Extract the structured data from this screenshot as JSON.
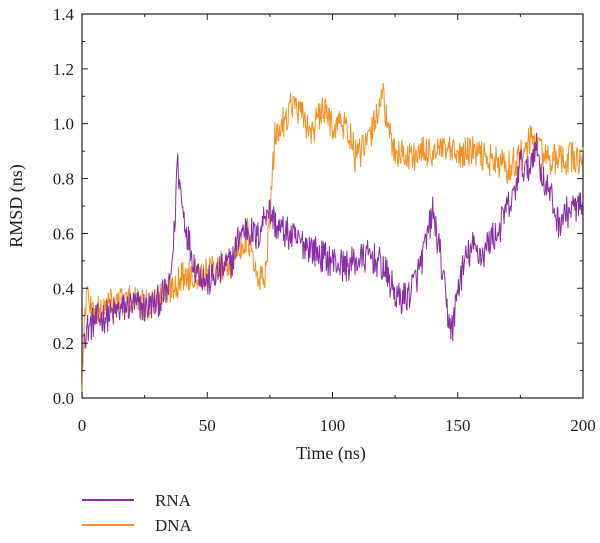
{
  "chart_data": {
    "type": "line",
    "title": "",
    "xlabel": "Time (ns)",
    "ylabel": "RMSD (ns)",
    "xlim": [
      0,
      200
    ],
    "ylim": [
      0.0,
      1.4
    ],
    "x_ticks": [
      0,
      50,
      100,
      150,
      200
    ],
    "y_ticks": [
      0.0,
      0.2,
      0.4,
      0.6,
      0.8,
      1.0,
      1.2,
      1.4
    ],
    "x_tick_labels": [
      "0",
      "50",
      "100",
      "150",
      "200"
    ],
    "y_tick_labels": [
      "0.0",
      "0.2",
      "0.4",
      "0.6",
      "0.8",
      "1.0",
      "1.2",
      "1.4"
    ],
    "legend_position": "bottom-left",
    "grid": false,
    "series": [
      {
        "name": "RNA",
        "color": "#8B2FA8",
        "points": [
          [
            0,
            0.22
          ],
          [
            2,
            0.25
          ],
          [
            5,
            0.28
          ],
          [
            10,
            0.3
          ],
          [
            15,
            0.32
          ],
          [
            20,
            0.34
          ],
          [
            25,
            0.33
          ],
          [
            30,
            0.35
          ],
          [
            35,
            0.4
          ],
          [
            37,
            0.62
          ],
          [
            38,
            0.87
          ],
          [
            40,
            0.7
          ],
          [
            42,
            0.6
          ],
          [
            45,
            0.48
          ],
          [
            50,
            0.42
          ],
          [
            55,
            0.46
          ],
          [
            60,
            0.5
          ],
          [
            63,
            0.6
          ],
          [
            66,
            0.62
          ],
          [
            70,
            0.58
          ],
          [
            74,
            0.7
          ],
          [
            78,
            0.62
          ],
          [
            82,
            0.6
          ],
          [
            86,
            0.57
          ],
          [
            90,
            0.56
          ],
          [
            95,
            0.52
          ],
          [
            100,
            0.5
          ],
          [
            105,
            0.48
          ],
          [
            110,
            0.5
          ],
          [
            115,
            0.52
          ],
          [
            120,
            0.48
          ],
          [
            123,
            0.42
          ],
          [
            126,
            0.36
          ],
          [
            130,
            0.37
          ],
          [
            134,
            0.45
          ],
          [
            137,
            0.55
          ],
          [
            140,
            0.68
          ],
          [
            143,
            0.52
          ],
          [
            146,
            0.3
          ],
          [
            148,
            0.25
          ],
          [
            150,
            0.4
          ],
          [
            153,
            0.5
          ],
          [
            156,
            0.55
          ],
          [
            160,
            0.52
          ],
          [
            163,
            0.58
          ],
          [
            166,
            0.6
          ],
          [
            169,
            0.68
          ],
          [
            172,
            0.72
          ],
          [
            175,
            0.86
          ],
          [
            178,
            0.82
          ],
          [
            181,
            0.93
          ],
          [
            184,
            0.8
          ],
          [
            187,
            0.74
          ],
          [
            190,
            0.64
          ],
          [
            194,
            0.68
          ],
          [
            198,
            0.7
          ],
          [
            200,
            0.68
          ]
        ]
      },
      {
        "name": "DNA",
        "color": "#F39325",
        "points": [
          [
            0,
            0.02
          ],
          [
            1,
            0.3
          ],
          [
            2,
            0.38
          ],
          [
            5,
            0.3
          ],
          [
            10,
            0.34
          ],
          [
            15,
            0.35
          ],
          [
            20,
            0.36
          ],
          [
            25,
            0.33
          ],
          [
            30,
            0.36
          ],
          [
            35,
            0.4
          ],
          [
            40,
            0.44
          ],
          [
            45,
            0.46
          ],
          [
            50,
            0.45
          ],
          [
            55,
            0.48
          ],
          [
            60,
            0.5
          ],
          [
            63,
            0.55
          ],
          [
            66,
            0.6
          ],
          [
            70,
            0.42
          ],
          [
            73,
            0.45
          ],
          [
            75,
            0.65
          ],
          [
            77,
            0.95
          ],
          [
            80,
            1.0
          ],
          [
            84,
            1.08
          ],
          [
            88,
            1.02
          ],
          [
            92,
            0.97
          ],
          [
            96,
            1.05
          ],
          [
            100,
            1.0
          ],
          [
            104,
            1.0
          ],
          [
            107,
            0.96
          ],
          [
            109,
            0.88
          ],
          [
            112,
            0.9
          ],
          [
            115,
            0.95
          ],
          [
            118,
            1.05
          ],
          [
            120,
            1.13
          ],
          [
            122,
            0.97
          ],
          [
            125,
            0.9
          ],
          [
            130,
            0.88
          ],
          [
            135,
            0.89
          ],
          [
            140,
            0.9
          ],
          [
            145,
            0.9
          ],
          [
            150,
            0.88
          ],
          [
            155,
            0.9
          ],
          [
            160,
            0.88
          ],
          [
            165,
            0.86
          ],
          [
            170,
            0.84
          ],
          [
            175,
            0.88
          ],
          [
            178,
            0.92
          ],
          [
            180,
            0.95
          ],
          [
            185,
            0.88
          ],
          [
            190,
            0.86
          ],
          [
            195,
            0.88
          ],
          [
            200,
            0.86
          ]
        ]
      }
    ]
  }
}
